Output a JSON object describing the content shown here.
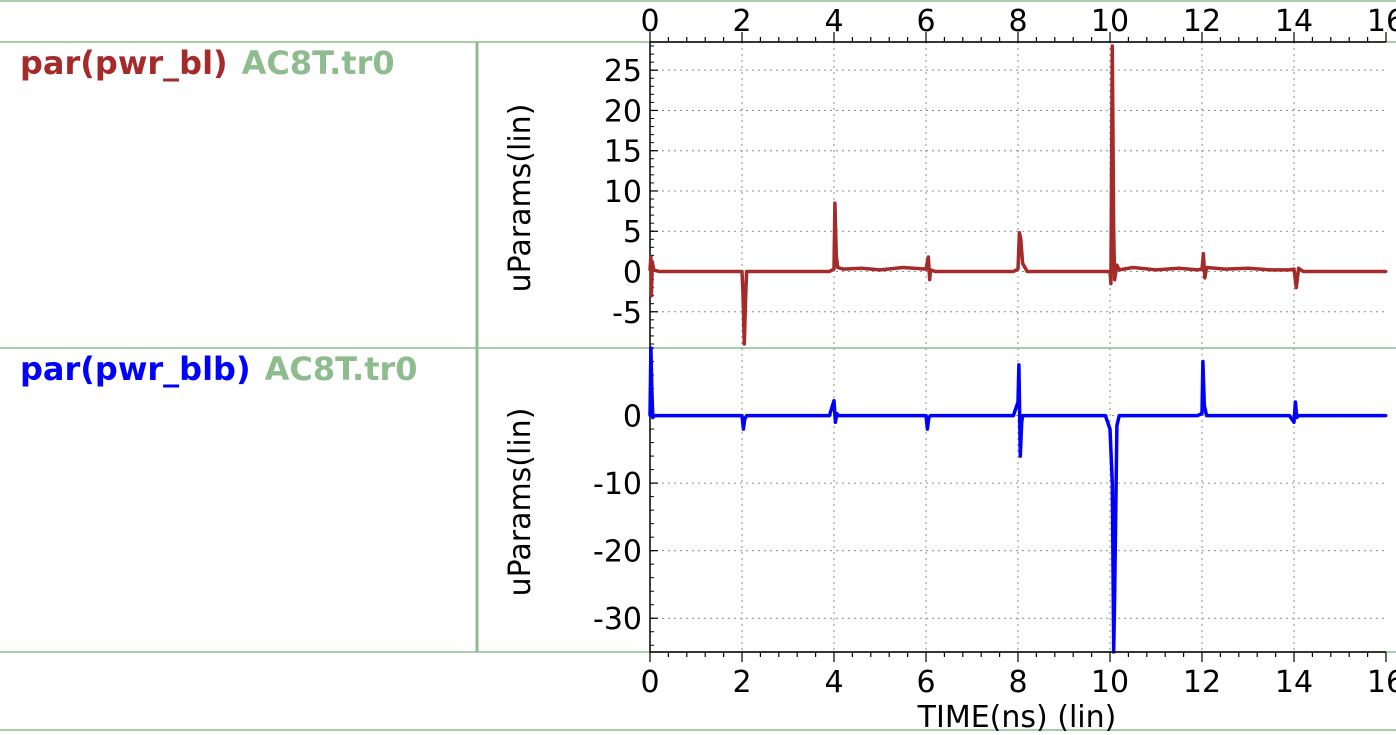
{
  "colors": {
    "frame": "#8fbc8f",
    "grid": "#8c8c8c",
    "series_bl": "#a52a2a",
    "series_blb": "#0000ff",
    "source": "#8fbc8f",
    "text": "#000000"
  },
  "chart_data": [
    {
      "type": "line",
      "legend": {
        "signal": "par(pwr_bl)",
        "source": "AC8T.tr0"
      },
      "ylabel": "uParams(lin)",
      "xlabel": "TIME(ns) (lin)",
      "xlim": [
        0,
        16
      ],
      "ylim": [
        -9.5,
        28.5
      ],
      "x_ticks": [
        "0",
        "2",
        "4",
        "6",
        "8",
        "10",
        "12",
        "14",
        "16"
      ],
      "y_ticks": [
        "25",
        "20",
        "15",
        "10",
        "5",
        "0",
        "-5"
      ],
      "y_tick_values": [
        25,
        20,
        15,
        10,
        5,
        0,
        -5
      ],
      "grid": true,
      "series": [
        {
          "x": [
            0,
            0.02,
            0.03,
            0.05,
            0.08,
            0.2,
            1.5,
            2.0,
            2.02,
            2.05,
            2.08,
            2.1,
            2.2,
            3.9,
            4.0,
            4.02,
            4.05,
            4.08,
            4.2,
            4.6,
            5.0,
            5.5,
            6.0,
            6.05,
            6.08,
            6.1,
            6.2,
            7.9,
            8.0,
            8.03,
            8.06,
            8.1,
            8.2,
            9.5,
            10.0,
            10.02,
            10.05,
            10.08,
            10.1,
            10.15,
            10.2,
            10.5,
            11.0,
            11.5,
            11.9,
            12.0,
            12.03,
            12.06,
            12.1,
            12.5,
            13.0,
            13.5,
            13.9,
            14.0,
            14.05,
            14.1,
            14.2,
            15.0,
            16.0
          ],
          "values": [
            0.2,
            1.8,
            -3.0,
            1.2,
            0.2,
            0,
            0,
            0,
            -2.5,
            -9.0,
            -3.0,
            0,
            0,
            0,
            0.3,
            8.5,
            2.0,
            0.5,
            0.3,
            0.4,
            0.2,
            0.5,
            0.3,
            1.8,
            -1.0,
            0.2,
            0,
            0,
            0.3,
            4.8,
            4.0,
            1.0,
            0,
            0,
            0,
            -1.5,
            28.0,
            5.0,
            -1.0,
            0.8,
            0.2,
            0.5,
            0.2,
            0.4,
            0.2,
            0.3,
            2.2,
            -0.8,
            0.5,
            0.3,
            0.4,
            0.2,
            0.2,
            0.3,
            -2.0,
            0.4,
            0,
            0,
            0
          ]
        }
      ]
    },
    {
      "type": "line",
      "legend": {
        "signal": "par(pwr_blb)",
        "source": "AC8T.tr0"
      },
      "ylabel": "uParams(lin)",
      "xlabel": "TIME(ns) (lin)",
      "xlim": [
        0,
        16
      ],
      "ylim": [
        -35,
        10
      ],
      "x_ticks": [
        "0",
        "2",
        "4",
        "6",
        "8",
        "10",
        "12",
        "14",
        "16"
      ],
      "y_ticks": [
        "0",
        "-10",
        "-20",
        "-30"
      ],
      "y_tick_values": [
        0,
        -10,
        -20,
        -30
      ],
      "grid": true,
      "series": [
        {
          "x": [
            0,
            0.02,
            0.04,
            0.06,
            0.1,
            0.2,
            1.9,
            2.0,
            2.03,
            2.06,
            2.1,
            2.2,
            3.9,
            4.0,
            4.03,
            4.06,
            4.1,
            4.2,
            5.9,
            6.0,
            6.03,
            6.06,
            6.1,
            6.2,
            7.9,
            8.0,
            8.02,
            8.05,
            8.08,
            8.1,
            8.2,
            9.9,
            10.0,
            10.05,
            10.08,
            10.1,
            10.15,
            10.2,
            11.9,
            12.0,
            12.02,
            12.05,
            12.1,
            12.2,
            13.9,
            14.0,
            14.03,
            14.06,
            14.1,
            14.2,
            15.0,
            16.0
          ],
          "values": [
            0,
            10.0,
            4.0,
            -0.3,
            0,
            0,
            0,
            0,
            -2.0,
            -0.5,
            0,
            0,
            0,
            2.2,
            -1.0,
            0.3,
            0,
            0,
            0,
            0,
            -2.0,
            -0.3,
            0,
            0,
            0,
            2.0,
            7.5,
            -6.0,
            -1.0,
            0,
            0,
            0,
            -2.0,
            -10.0,
            -35.0,
            -27.0,
            -1.5,
            0,
            0,
            0.3,
            8.0,
            1.5,
            0,
            0,
            0,
            -1.0,
            2.0,
            -0.3,
            0,
            0,
            0,
            0
          ]
        }
      ]
    }
  ]
}
